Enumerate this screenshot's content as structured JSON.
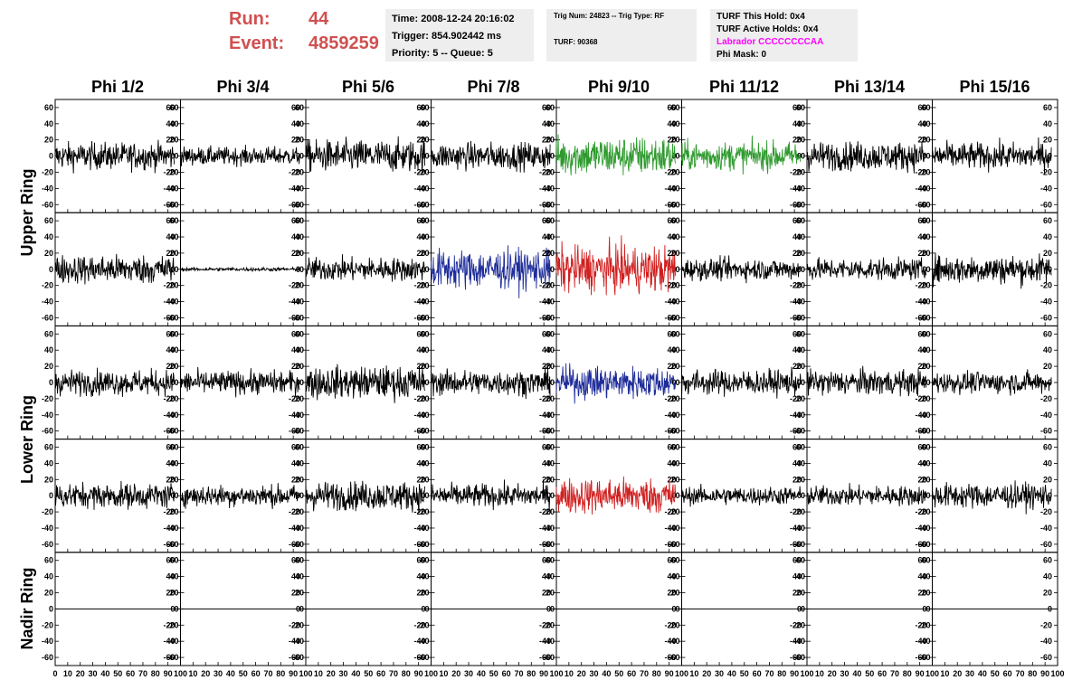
{
  "header": {
    "run_label": "Run:",
    "run_value": "44",
    "event_label": "Event:",
    "event_value": "4859259",
    "run_color": "#d05050"
  },
  "info_box_1": {
    "time": "Time: 2008-12-24 20:16:02",
    "trigger": "Trigger: 854.902442 ms",
    "priority": "Priority: 5 -- Queue: 5"
  },
  "info_box_2": {
    "trig": "Trig Num: 24823 -- Trig Type: RF",
    "turf": "TURF: 90368"
  },
  "info_box_3": {
    "this_hold": "TURF This Hold: 0x4",
    "active_holds": "TURF Active Holds: 0x4",
    "labrador": "Labrador CCCCCCCCAA",
    "phi_mask": "Phi Mask: 0",
    "labrador_color": "#ff00ff"
  },
  "chart_data": {
    "type": "line",
    "columns": [
      "Phi 1/2",
      "Phi 3/4",
      "Phi 5/6",
      "Phi 7/8",
      "Phi 9/10",
      "Phi 11/12",
      "Phi 13/14",
      "Phi 15/16"
    ],
    "ring_labels": [
      {
        "label": "Upper Ring",
        "rows": [
          0,
          1
        ]
      },
      {
        "label": "Lower Ring",
        "rows": [
          2,
          3
        ]
      },
      {
        "label": "Nadir Ring",
        "rows": [
          4
        ]
      }
    ],
    "xlim": [
      0,
      100
    ],
    "ylim": [
      -70,
      70
    ],
    "yticks": [
      -60,
      -40,
      -20,
      0,
      20,
      40,
      60
    ],
    "xticks": [
      0,
      10,
      20,
      30,
      40,
      50,
      60,
      70,
      80,
      90,
      100
    ],
    "colors": {
      "black": "#000000",
      "green": "#2e9a2e",
      "blue": "#1f2d9a",
      "red": "#d02020"
    },
    "panels": [
      [
        {
          "color": "black",
          "amp": 15
        },
        {
          "color": "black",
          "amp": 10
        },
        {
          "color": "black",
          "amp": 18
        },
        {
          "color": "black",
          "amp": 15
        },
        {
          "color": "green",
          "amp": 22
        },
        {
          "color": "green",
          "amp": 16
        },
        {
          "color": "black",
          "amp": 16
        },
        {
          "color": "black",
          "amp": 15
        }
      ],
      [
        {
          "color": "black",
          "amp": 16
        },
        {
          "color": "black",
          "amp": 2
        },
        {
          "color": "black",
          "amp": 13
        },
        {
          "color": "blue",
          "amp": 22
        },
        {
          "color": "red",
          "amp": 26
        },
        {
          "color": "black",
          "amp": 12
        },
        {
          "color": "black",
          "amp": 12
        },
        {
          "color": "black",
          "amp": 16
        }
      ],
      [
        {
          "color": "black",
          "amp": 14
        },
        {
          "color": "black",
          "amp": 13
        },
        {
          "color": "black",
          "amp": 18
        },
        {
          "color": "black",
          "amp": 14
        },
        {
          "color": "blue",
          "amp": 18
        },
        {
          "color": "black",
          "amp": 14
        },
        {
          "color": "black",
          "amp": 14
        },
        {
          "color": "black",
          "amp": 12
        }
      ],
      [
        {
          "color": "black",
          "amp": 14
        },
        {
          "color": "black",
          "amp": 12
        },
        {
          "color": "black",
          "amp": 16
        },
        {
          "color": "black",
          "amp": 13
        },
        {
          "color": "red",
          "amp": 20
        },
        {
          "color": "black",
          "amp": 10
        },
        {
          "color": "black",
          "amp": 11
        },
        {
          "color": "black",
          "amp": 14
        }
      ],
      [
        {
          "color": "black",
          "amp": 0
        },
        {
          "color": "black",
          "amp": 0
        },
        {
          "color": "black",
          "amp": 0
        },
        {
          "color": "black",
          "amp": 0
        },
        {
          "color": "black",
          "amp": 0
        },
        {
          "color": "black",
          "amp": 0
        },
        {
          "color": "black",
          "amp": 0
        },
        {
          "color": "black",
          "amp": 0
        }
      ]
    ]
  }
}
